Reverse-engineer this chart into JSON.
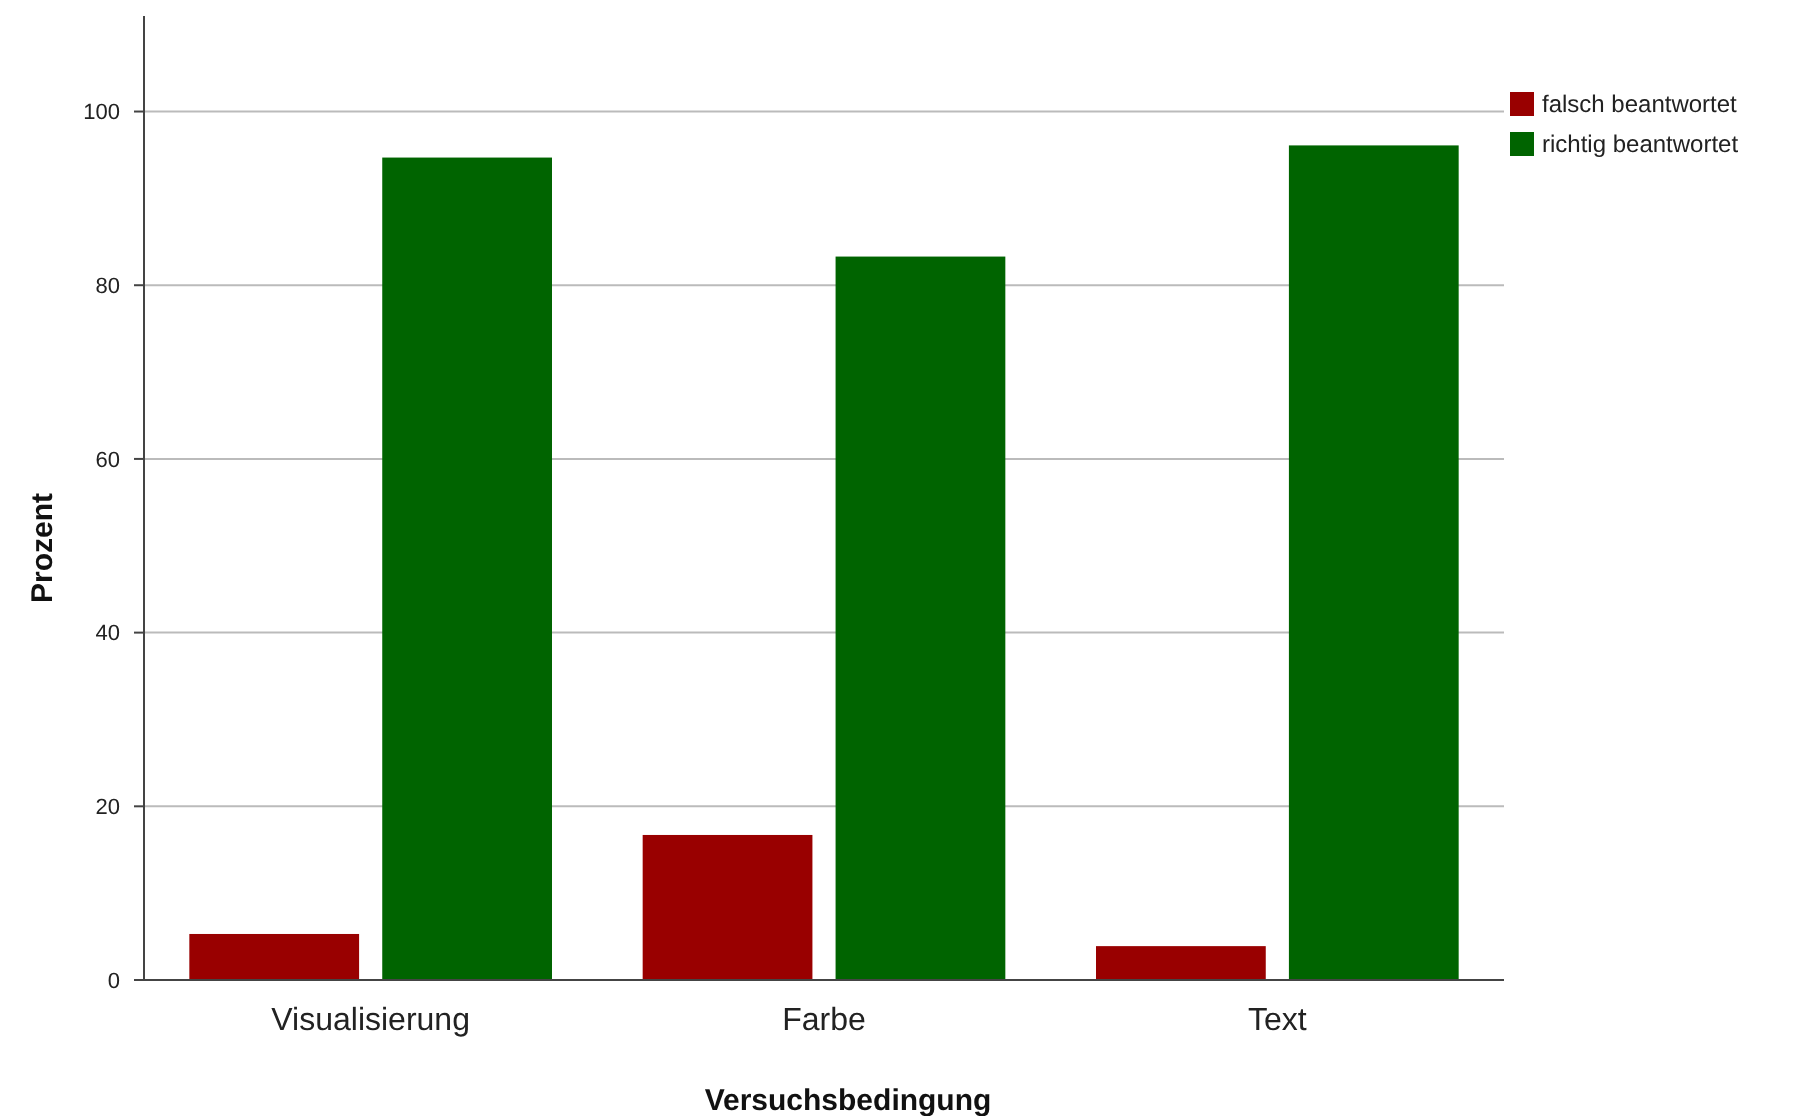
{
  "chart_data": {
    "type": "bar",
    "xlabel": "Versuchsbedingung",
    "ylabel": "Prozent",
    "categories": [
      "Visualisierung",
      "Farbe",
      "Text"
    ],
    "series": [
      {
        "name": "falsch beantwortet",
        "color": "#990000",
        "values": [
          5.3,
          16.7,
          3.9
        ]
      },
      {
        "name": "richtig beantwortet",
        "color": "#006400",
        "values": [
          94.7,
          83.3,
          96.1
        ]
      }
    ],
    "ylim": [
      0,
      111
    ],
    "yticks": [
      0,
      20,
      40,
      60,
      80,
      100
    ],
    "grid": "y",
    "legend": "top right"
  }
}
